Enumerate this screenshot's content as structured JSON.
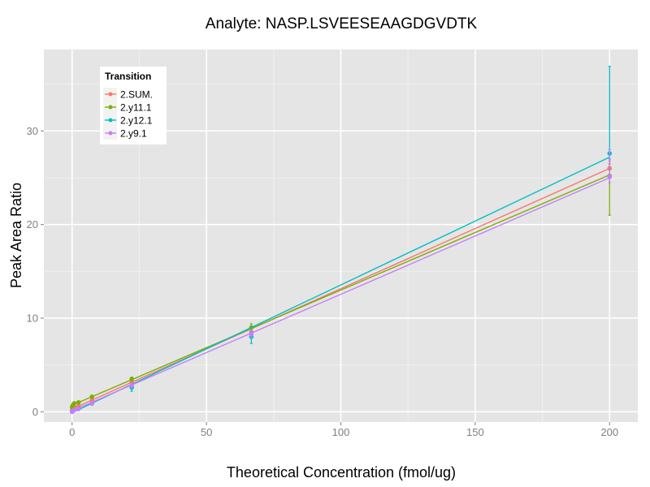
{
  "chart_data": {
    "type": "line",
    "title": "Analyte: NASP.LSVEESEAAGDGVDTK",
    "xlabel": "Theoretical Concentration (fmol/ug)",
    "ylabel": "Peak Area Ratio",
    "xlim": [
      -10.5,
      210.5
    ],
    "ylim": [
      -1.1,
      38.7
    ],
    "xticks": [
      0,
      50,
      100,
      150,
      200
    ],
    "xtick_labels": [
      "0",
      "50",
      "100",
      "150",
      "200"
    ],
    "yticks": [
      0,
      10,
      20,
      30
    ],
    "ytick_labels": [
      "0",
      "10",
      "20",
      "30"
    ],
    "grid": true,
    "legend": {
      "title": "Transition",
      "position": "top-left",
      "entries": [
        "2.SUM.",
        "2.y11.1",
        "2.y12.1",
        "2.y9.1"
      ]
    },
    "x": [
      0,
      0.3,
      0.8,
      2.4,
      7.4,
      22.2,
      66.7,
      200
    ],
    "series": [
      {
        "name": "2.SUM.",
        "color": "#F8766D",
        "values": [
          0.2,
          0.35,
          0.5,
          0.6,
          1.2,
          3.1,
          8.5,
          26.0
        ],
        "err_low": [
          0.1,
          0.2,
          0.35,
          0.45,
          1.0,
          2.8,
          8.0,
          25.2
        ],
        "err_high": [
          0.3,
          0.5,
          0.65,
          0.75,
          1.4,
          3.4,
          9.0,
          26.8
        ],
        "fit": [
          0.3,
          26.0
        ]
      },
      {
        "name": "2.y11.1",
        "color": "#7CAE00",
        "values": [
          0.5,
          0.7,
          0.9,
          1.0,
          1.6,
          3.5,
          9.0,
          25.2
        ],
        "err_low": [
          0.4,
          0.6,
          0.75,
          0.9,
          1.45,
          3.3,
          8.6,
          21.0
        ],
        "err_high": [
          0.6,
          0.8,
          1.05,
          1.1,
          1.75,
          3.7,
          9.4,
          26.5
        ],
        "fit": [
          0.7,
          25.3
        ]
      },
      {
        "name": "2.y12.1",
        "color": "#00BFC4",
        "values": [
          0.0,
          0.1,
          0.2,
          0.3,
          0.9,
          2.6,
          8.0,
          27.6
        ],
        "err_low": [
          -0.1,
          0.0,
          0.1,
          0.2,
          0.7,
          2.2,
          7.3,
          27.0
        ],
        "err_high": [
          0.1,
          0.2,
          0.3,
          0.4,
          1.1,
          2.9,
          8.6,
          36.9
        ],
        "fit": [
          -0.1,
          27.2
        ]
      },
      {
        "name": "2.y9.1",
        "color": "#C77CFF",
        "values": [
          0.0,
          0.1,
          0.2,
          0.3,
          0.9,
          2.8,
          8.3,
          25.1
        ],
        "err_low": [
          -0.1,
          0.0,
          0.1,
          0.2,
          0.7,
          2.6,
          7.9,
          24.5
        ],
        "err_high": [
          0.1,
          0.2,
          0.3,
          0.4,
          1.1,
          3.0,
          8.7,
          28.0
        ],
        "fit": [
          0.1,
          25.0
        ]
      }
    ]
  }
}
